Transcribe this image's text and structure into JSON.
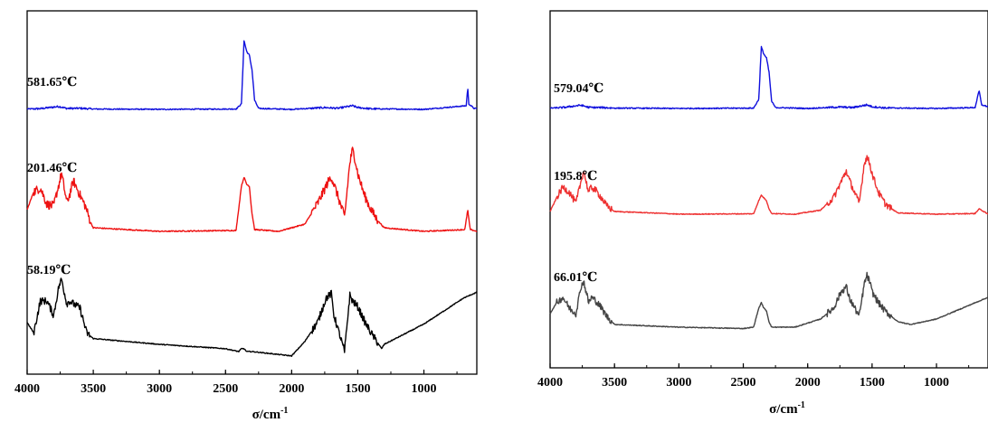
{
  "chart_data": [
    {
      "type": "line",
      "xlabel": "σ/cm",
      "xlabel_sup": "-1",
      "xlim": [
        4000,
        600
      ],
      "x_ticks": [
        "4000",
        "3500",
        "3000",
        "2500",
        "2000",
        "1500",
        "1000"
      ],
      "y_ticks": [],
      "series": [
        {
          "name": "581.65℃",
          "color": "#1010dd",
          "baseline": 8,
          "offset": 0,
          "points": [
            [
              4000,
              0.2
            ],
            [
              3900,
              0.4
            ],
            [
              3760,
              1.6
            ],
            [
              3700,
              0.5
            ],
            [
              3600,
              0.6
            ],
            [
              3500,
              0.2
            ],
            [
              3000,
              0
            ],
            [
              2420,
              0.2
            ],
            [
              2380,
              3
            ],
            [
              2360,
              38
            ],
            [
              2340,
              32
            ],
            [
              2320,
              30
            ],
            [
              2300,
              22
            ],
            [
              2280,
              5
            ],
            [
              2250,
              0.5
            ],
            [
              2000,
              0
            ],
            [
              1750,
              1
            ],
            [
              1650,
              0.6
            ],
            [
              1540,
              2
            ],
            [
              1500,
              1
            ],
            [
              1400,
              0.3
            ],
            [
              1000,
              0
            ],
            [
              680,
              2
            ],
            [
              669,
              12
            ],
            [
              660,
              3
            ],
            [
              620,
              0.5
            ],
            [
              600,
              0.4
            ]
          ]
        },
        {
          "name": "201.46℃",
          "color": "#ee1111",
          "baseline": 8,
          "offset": 0,
          "points": [
            [
              4000,
              12
            ],
            [
              3950,
              22
            ],
            [
              3900,
              24
            ],
            [
              3850,
              15
            ],
            [
              3800,
              14
            ],
            [
              3760,
              26
            ],
            [
              3740,
              32
            ],
            [
              3700,
              16
            ],
            [
              3680,
              20
            ],
            [
              3650,
              28
            ],
            [
              3600,
              20
            ],
            [
              3560,
              14
            ],
            [
              3520,
              5
            ],
            [
              3500,
              2
            ],
            [
              3000,
              0
            ],
            [
              2420,
              0.5
            ],
            [
              2380,
              25
            ],
            [
              2360,
              30
            ],
            [
              2340,
              26
            ],
            [
              2320,
              25
            ],
            [
              2300,
              10
            ],
            [
              2280,
              1
            ],
            [
              2100,
              0
            ],
            [
              1900,
              4
            ],
            [
              1800,
              16
            ],
            [
              1720,
              28
            ],
            [
              1700,
              30
            ],
            [
              1680,
              26
            ],
            [
              1600,
              8
            ],
            [
              1560,
              38
            ],
            [
              1540,
              45
            ],
            [
              1520,
              40
            ],
            [
              1500,
              32
            ],
            [
              1450,
              20
            ],
            [
              1400,
              12
            ],
            [
              1350,
              6
            ],
            [
              1300,
              2
            ],
            [
              1000,
              0
            ],
            [
              690,
              1
            ],
            [
              669,
              12
            ],
            [
              650,
              1
            ],
            [
              600,
              0
            ]
          ]
        },
        {
          "name": "58.19℃",
          "color": "#000000",
          "baseline": 40,
          "offset": 0,
          "points": [
            [
              4000,
              15
            ],
            [
              3950,
              8
            ],
            [
              3900,
              30
            ],
            [
              3850,
              30
            ],
            [
              3800,
              20
            ],
            [
              3760,
              40
            ],
            [
              3740,
              45
            ],
            [
              3700,
              28
            ],
            [
              3680,
              30
            ],
            [
              3650,
              28
            ],
            [
              3600,
              25
            ],
            [
              3550,
              8
            ],
            [
              3500,
              4
            ],
            [
              3000,
              0
            ],
            [
              2500,
              -3
            ],
            [
              2400,
              -5
            ],
            [
              2380,
              -3
            ],
            [
              2360,
              -3
            ],
            [
              2340,
              -5
            ],
            [
              2300,
              -5
            ],
            [
              2200,
              -6
            ],
            [
              2100,
              -7
            ],
            [
              2000,
              -8
            ],
            [
              1900,
              2
            ],
            [
              1800,
              16
            ],
            [
              1740,
              32
            ],
            [
              1700,
              35
            ],
            [
              1680,
              20
            ],
            [
              1600,
              -5
            ],
            [
              1560,
              34
            ],
            [
              1540,
              30
            ],
            [
              1500,
              26
            ],
            [
              1450,
              16
            ],
            [
              1400,
              8
            ],
            [
              1320,
              -3
            ],
            [
              1300,
              0
            ],
            [
              1000,
              14
            ],
            [
              800,
              26
            ],
            [
              700,
              32
            ],
            [
              600,
              36
            ]
          ]
        }
      ]
    },
    {
      "type": "line",
      "xlabel": "σ/cm",
      "xlabel_sup": "-1",
      "xlim": [
        4000,
        600
      ],
      "x_ticks": [
        "4000",
        "3500",
        "3000",
        "2500",
        "2000",
        "1500",
        "1000"
      ],
      "y_ticks": [],
      "series": [
        {
          "name": "579.04℃",
          "color": "#1010dd",
          "baseline": 8,
          "offset": 0,
          "points": [
            [
              4000,
              0.2
            ],
            [
              3900,
              0.5
            ],
            [
              3760,
              1.8
            ],
            [
              3700,
              0.6
            ],
            [
              3600,
              0.5
            ],
            [
              3500,
              0.2
            ],
            [
              3000,
              0
            ],
            [
              2420,
              0.2
            ],
            [
              2380,
              5
            ],
            [
              2360,
              34
            ],
            [
              2340,
              30
            ],
            [
              2320,
              28
            ],
            [
              2300,
              20
            ],
            [
              2280,
              4
            ],
            [
              2250,
              0.5
            ],
            [
              2000,
              0
            ],
            [
              1750,
              0.8
            ],
            [
              1650,
              0.5
            ],
            [
              1540,
              2
            ],
            [
              1500,
              1
            ],
            [
              1400,
              0.3
            ],
            [
              1000,
              0
            ],
            [
              700,
              0.5
            ],
            [
              669,
              10
            ],
            [
              650,
              2
            ],
            [
              600,
              1
            ]
          ]
        },
        {
          "name": "195.8℃",
          "color": "#ee3030",
          "baseline": 8,
          "offset": 0,
          "points": [
            [
              4000,
              2
            ],
            [
              3950,
              12
            ],
            [
              3900,
              20
            ],
            [
              3850,
              16
            ],
            [
              3800,
              8
            ],
            [
              3760,
              24
            ],
            [
              3740,
              32
            ],
            [
              3700,
              16
            ],
            [
              3680,
              20
            ],
            [
              3650,
              18
            ],
            [
              3600,
              12
            ],
            [
              3560,
              6
            ],
            [
              3500,
              2
            ],
            [
              3100,
              0.5
            ],
            [
              3000,
              0
            ],
            [
              2420,
              0.3
            ],
            [
              2380,
              10
            ],
            [
              2360,
              14
            ],
            [
              2340,
              12
            ],
            [
              2320,
              10
            ],
            [
              2300,
              4
            ],
            [
              2280,
              0.5
            ],
            [
              2100,
              0
            ],
            [
              1900,
              3
            ],
            [
              1800,
              12
            ],
            [
              1720,
              28
            ],
            [
              1700,
              32
            ],
            [
              1680,
              26
            ],
            [
              1600,
              8
            ],
            [
              1560,
              38
            ],
            [
              1540,
              42
            ],
            [
              1520,
              38
            ],
            [
              1500,
              30
            ],
            [
              1450,
              16
            ],
            [
              1400,
              8
            ],
            [
              1350,
              4
            ],
            [
              1300,
              1
            ],
            [
              1000,
              0
            ],
            [
              700,
              0.5
            ],
            [
              669,
              4
            ],
            [
              600,
              0
            ]
          ]
        },
        {
          "name": "66.01℃",
          "color": "#444444",
          "baseline": 8,
          "offset": 0,
          "points": [
            [
              4000,
              10
            ],
            [
              3950,
              18
            ],
            [
              3900,
              22
            ],
            [
              3850,
              14
            ],
            [
              3800,
              10
            ],
            [
              3760,
              30
            ],
            [
              3740,
              34
            ],
            [
              3700,
              18
            ],
            [
              3680,
              22
            ],
            [
              3650,
              20
            ],
            [
              3600,
              14
            ],
            [
              3560,
              8
            ],
            [
              3500,
              2
            ],
            [
              3000,
              0
            ],
            [
              2500,
              -1
            ],
            [
              2420,
              0
            ],
            [
              2380,
              14
            ],
            [
              2360,
              18
            ],
            [
              2340,
              14
            ],
            [
              2320,
              12
            ],
            [
              2300,
              4
            ],
            [
              2280,
              0
            ],
            [
              2100,
              0
            ],
            [
              1900,
              6
            ],
            [
              1800,
              14
            ],
            [
              1740,
              26
            ],
            [
              1700,
              30
            ],
            [
              1680,
              22
            ],
            [
              1600,
              8
            ],
            [
              1560,
              32
            ],
            [
              1540,
              38
            ],
            [
              1520,
              34
            ],
            [
              1500,
              26
            ],
            [
              1450,
              18
            ],
            [
              1400,
              12
            ],
            [
              1300,
              4
            ],
            [
              1200,
              2
            ],
            [
              1000,
              6
            ],
            [
              800,
              14
            ],
            [
              700,
              18
            ],
            [
              600,
              22
            ]
          ]
        }
      ]
    }
  ]
}
